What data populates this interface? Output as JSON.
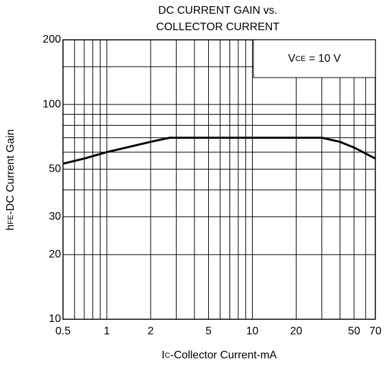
{
  "chart_data": {
    "type": "line",
    "title": [
      "DC CURRENT GAIN vs.",
      "COLLECTOR CURRENT"
    ],
    "x_label": {
      "main": "I",
      "sub": "C",
      "rest": "-Collector Current-mA"
    },
    "y_label": {
      "main": "h",
      "sub": "FE",
      "rest": "-DC Current Gain"
    },
    "annotation": {
      "main": "V",
      "sub": "CE",
      "rest": " = 10 V"
    },
    "xscale": "log",
    "yscale": "log",
    "xlim": [
      0.5,
      70
    ],
    "ylim": [
      10,
      200
    ],
    "xticks": [
      0.5,
      1,
      2,
      5,
      10,
      20,
      50,
      70
    ],
    "yticks": [
      10,
      20,
      30,
      50,
      100,
      200
    ],
    "xgrid": [
      0.6,
      0.7,
      0.8,
      0.9,
      3,
      4,
      6,
      7,
      8,
      9,
      30,
      40,
      60
    ],
    "ygrid": [
      40,
      60,
      70,
      80,
      90,
      150
    ],
    "grid": true,
    "series": [
      {
        "name": "hFE",
        "color": "#000000",
        "x": [
          0.5,
          0.7,
          1,
          1.5,
          2,
          2.7,
          5,
          10,
          20,
          30,
          40,
          50,
          70
        ],
        "values": [
          53,
          56,
          60,
          64,
          67,
          70,
          70,
          70,
          70,
          70,
          67,
          63,
          56
        ]
      }
    ]
  }
}
